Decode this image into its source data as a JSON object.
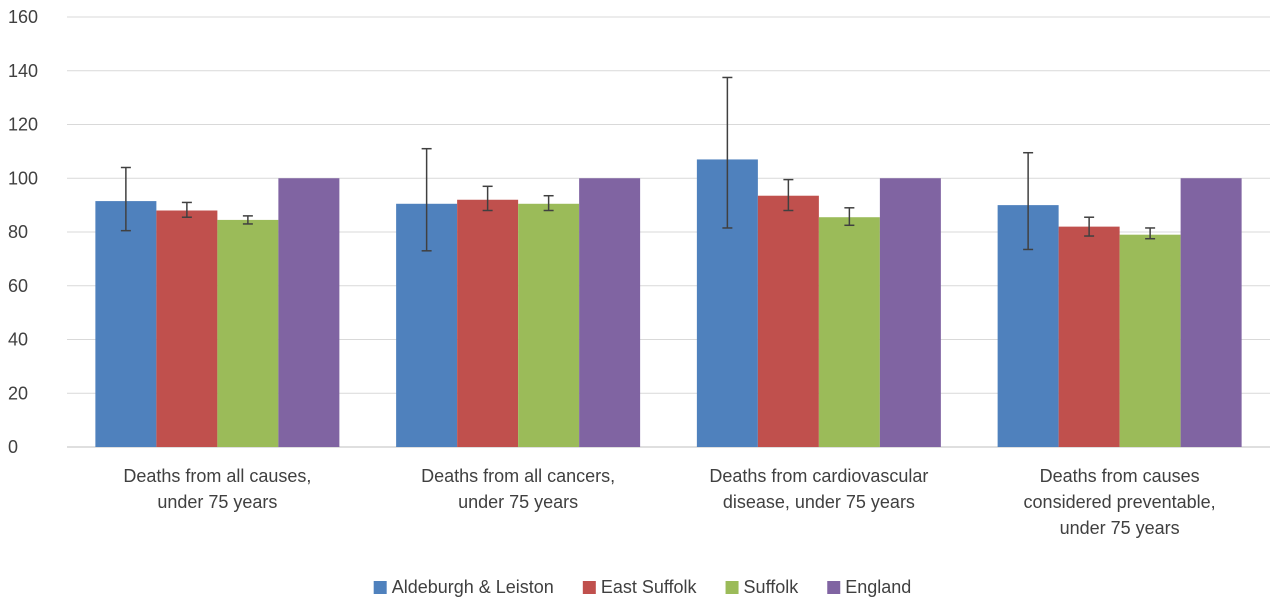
{
  "chart_data": {
    "type": "bar",
    "categories": [
      [
        "Deaths from all causes,",
        "under 75 years"
      ],
      [
        "Deaths from all cancers,",
        "under 75 years"
      ],
      [
        "Deaths from cardiovascular",
        "disease, under 75 years"
      ],
      [
        "Deaths from causes",
        "considered preventable,",
        "under 75 years"
      ]
    ],
    "series": [
      {
        "name": "Aldeburgh & Leiston",
        "color": "#4F81BD",
        "values": [
          91.5,
          90.5,
          107,
          90
        ],
        "err_low": [
          80.5,
          73,
          81.5,
          73.5
        ],
        "err_high": [
          104,
          111,
          137.5,
          109.5
        ]
      },
      {
        "name": "East Suffolk",
        "color": "#C0504D",
        "values": [
          88,
          92,
          93.5,
          82
        ],
        "err_low": [
          85.5,
          88,
          88,
          78.5
        ],
        "err_high": [
          91,
          97,
          99.5,
          85.5
        ]
      },
      {
        "name": "Suffolk",
        "color": "#9BBB59",
        "values": [
          84.5,
          90.5,
          85.5,
          79
        ],
        "err_low": [
          83,
          88,
          82.5,
          77.5
        ],
        "err_high": [
          86,
          93.5,
          89,
          81.5
        ]
      },
      {
        "name": "England",
        "color": "#8064A2",
        "values": [
          100,
          100,
          100,
          100
        ]
      }
    ],
    "yticks": [
      0,
      20,
      40,
      60,
      80,
      100,
      120,
      140,
      160
    ],
    "ylim": [
      0,
      160
    ],
    "grid": true,
    "legend_position": "bottom",
    "title": "",
    "xlabel": "",
    "ylabel": ""
  }
}
